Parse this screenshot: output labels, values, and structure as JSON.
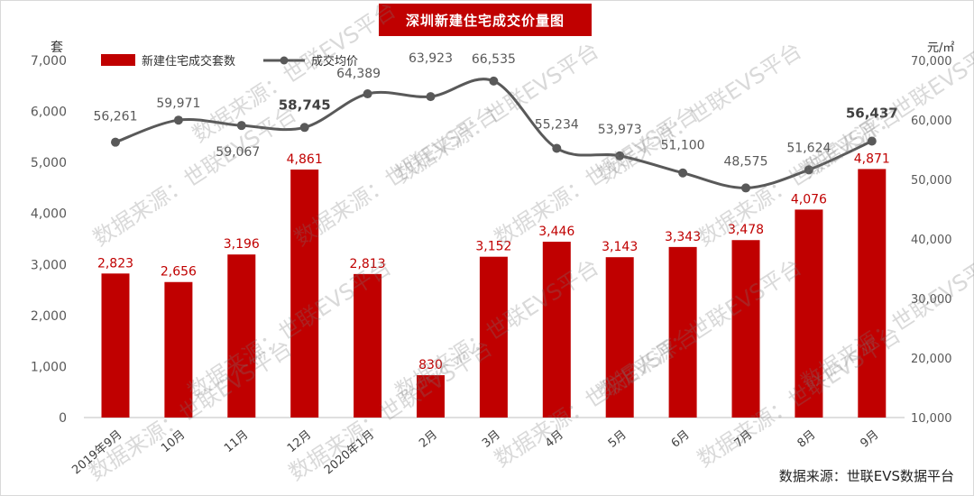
{
  "chart_data": {
    "type": "bar",
    "title": "深圳新建住宅成交价量图",
    "categories": [
      "2019年9月",
      "10月",
      "11月",
      "12月",
      "2020年1月",
      "2月",
      "3月",
      "4月",
      "5月",
      "6月",
      "7月",
      "8月",
      "9月"
    ],
    "series": [
      {
        "name": "新建住宅成交套数",
        "type": "bar",
        "axis": "left",
        "color": "#c00000",
        "values": [
          2823,
          2656,
          3196,
          4861,
          2813,
          830,
          3152,
          3446,
          3143,
          3343,
          3478,
          4076,
          4871
        ],
        "labels": [
          "2,823",
          "2,656",
          "3,196",
          "4,861",
          "2,813",
          "830",
          "3,152",
          "3,446",
          "3,143",
          "3,343",
          "3,478",
          "4,076",
          "4,871"
        ]
      },
      {
        "name": "成交均价",
        "type": "line",
        "axis": "right",
        "color": "#595959",
        "values": [
          56261,
          59971,
          59067,
          58745,
          64389,
          63923,
          66535,
          55234,
          53973,
          51100,
          48575,
          51624,
          56437
        ],
        "labels": [
          "56,261",
          "59,971",
          "59,067",
          "58,745",
          "64,389",
          "63,923",
          "66,535",
          "55,234",
          "53,973",
          "51,100",
          "48,575",
          "51,624",
          "56,437"
        ]
      }
    ],
    "ylabel_left": "套",
    "ylabel_right": "元/㎡",
    "ylim_left": [
      0,
      7000
    ],
    "ylim_right": [
      10000,
      70000
    ],
    "yticks_left": [
      "0",
      "1,000",
      "2,000",
      "3,000",
      "4,000",
      "5,000",
      "6,000",
      "7,000"
    ],
    "yticks_right": [
      "10,000",
      "20,000",
      "30,000",
      "40,000",
      "50,000",
      "60,000",
      "70,000"
    ],
    "grid": false,
    "legend_position": "top-left"
  },
  "watermark": "数据来源：世联EVS平台",
  "source_note": "数据来源：世联EVS数据平台"
}
